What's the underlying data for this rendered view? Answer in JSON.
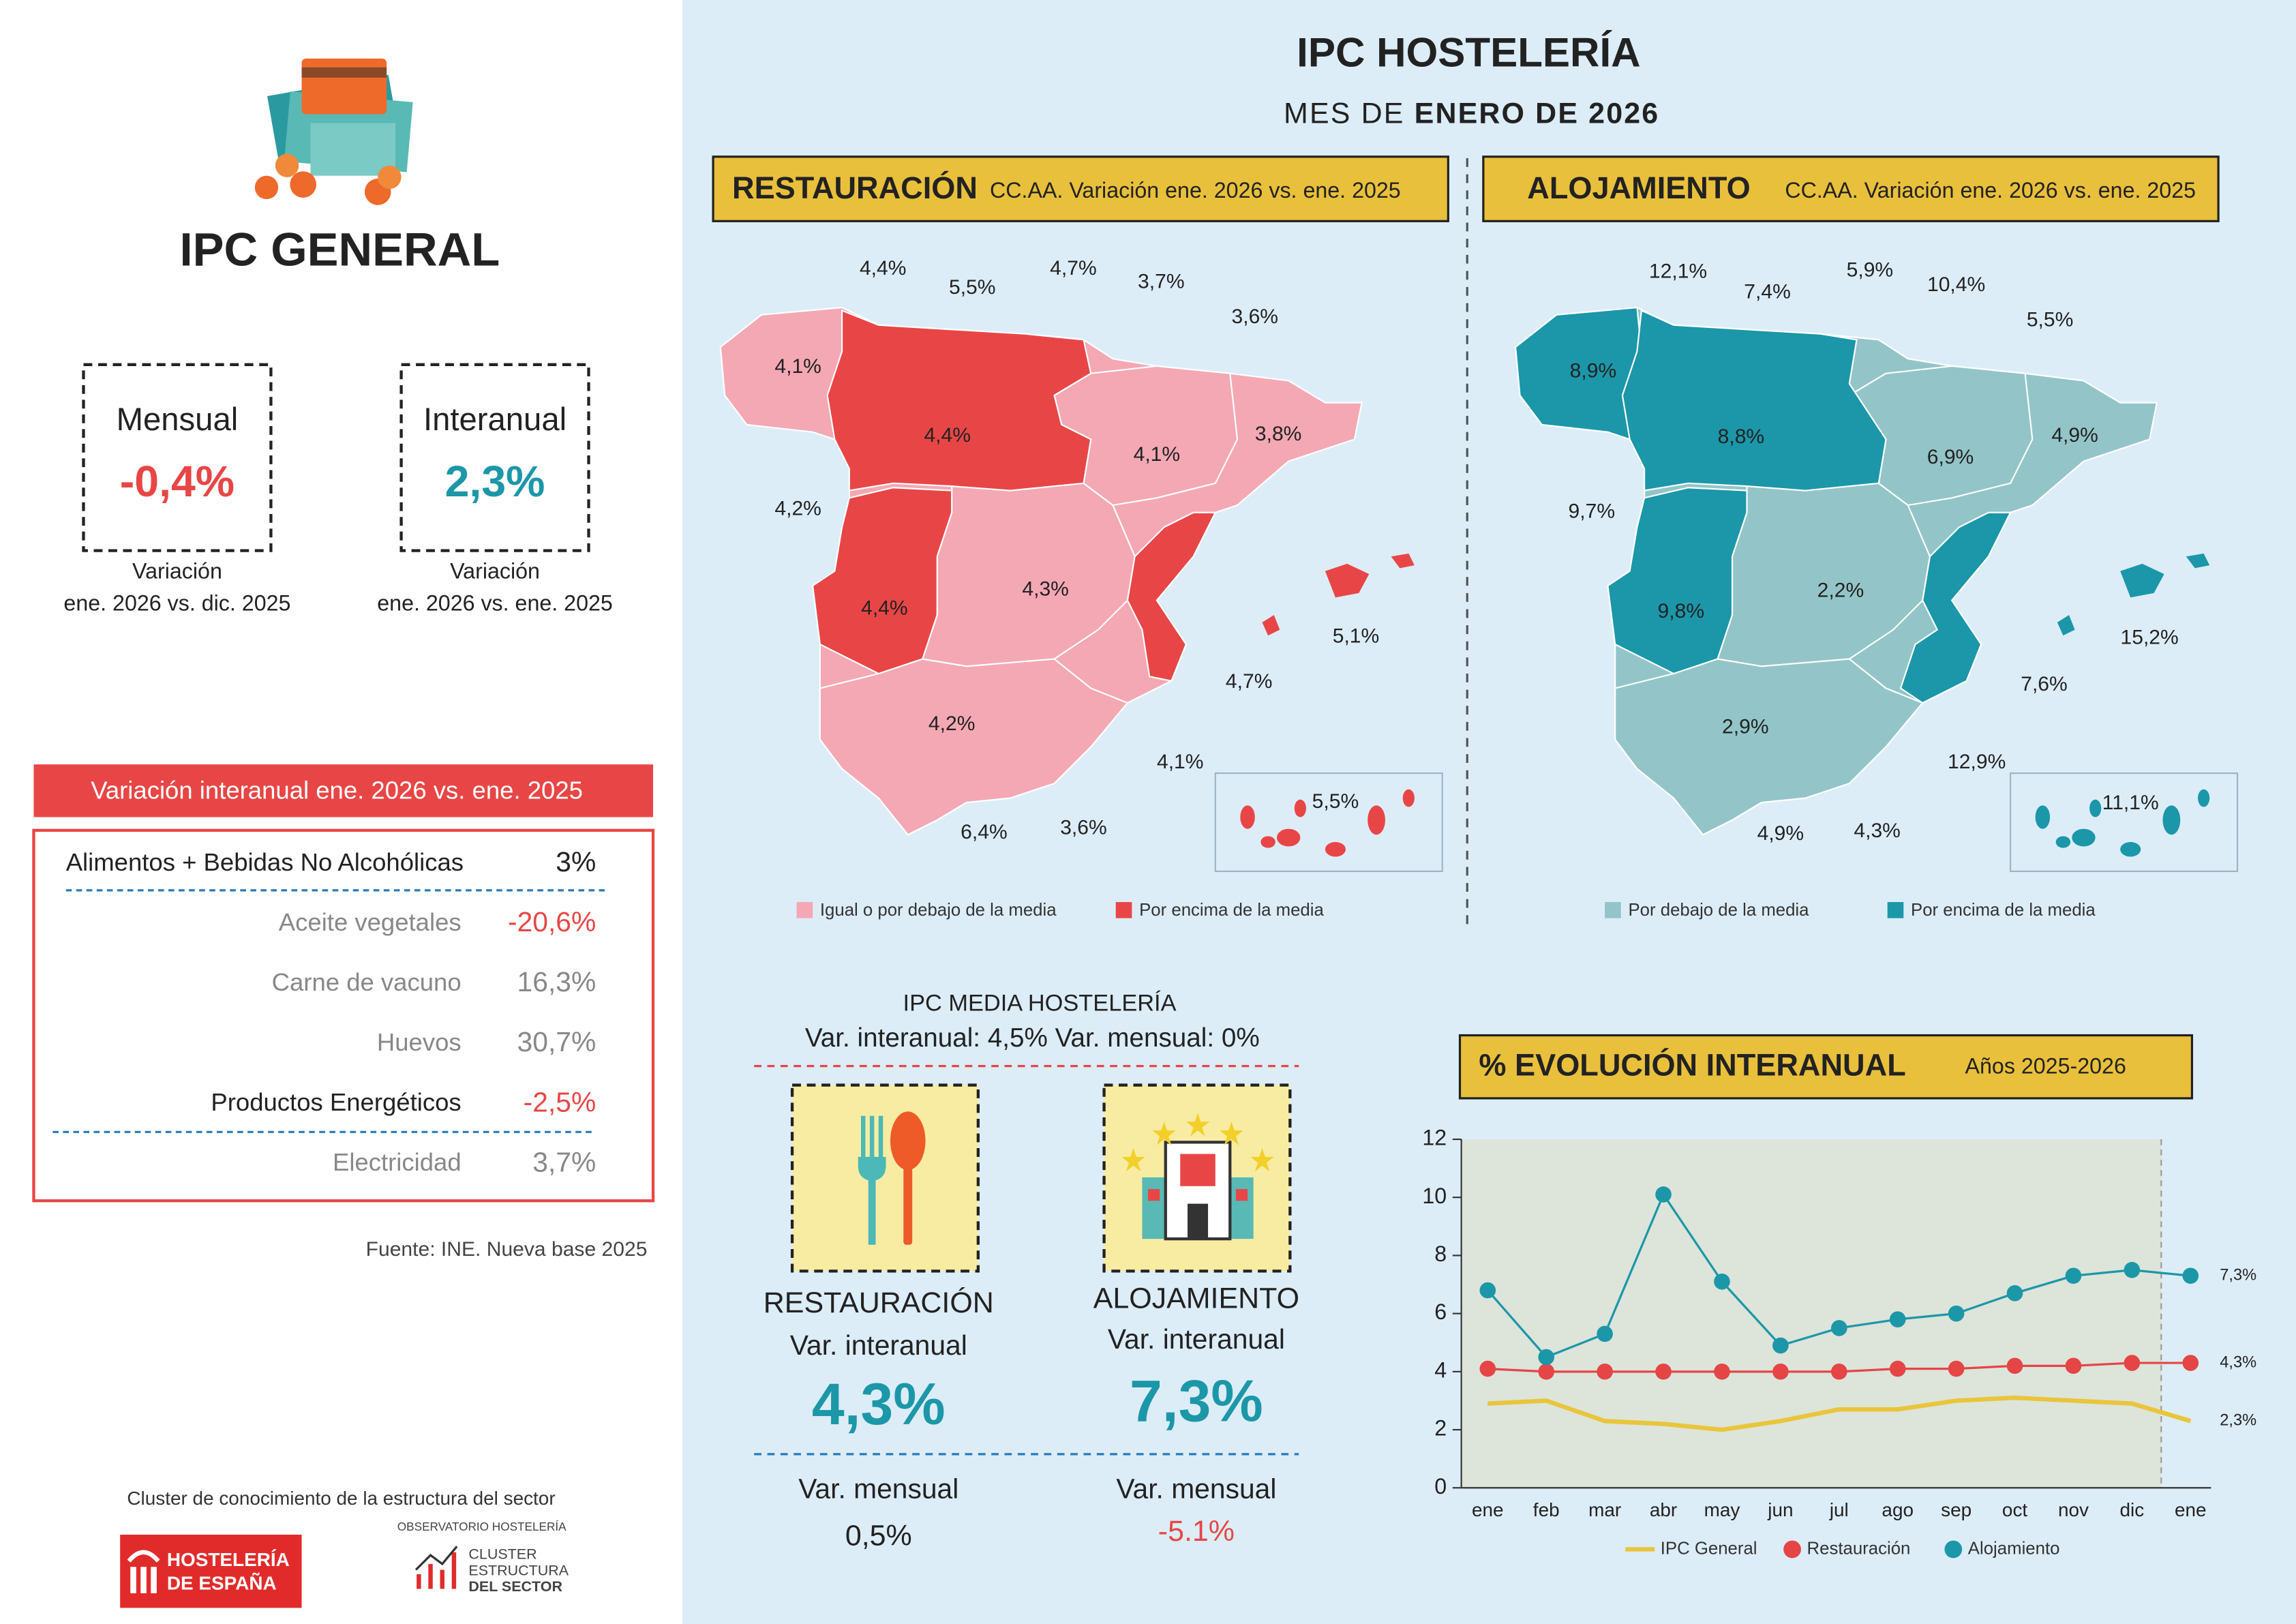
{
  "left": {
    "title": "IPC GENERAL",
    "mensual": {
      "label": "Mensual",
      "value": "-0,4%",
      "note1": "Variación",
      "note2": "ene. 2026 vs. dic. 2025"
    },
    "interanual": {
      "label": "Interanual",
      "value": "2,3%",
      "note1": "Variación",
      "note2": "ene. 2026 vs. ene. 2025"
    },
    "table": {
      "header": "Variación interanual ene. 2026 vs. ene. 2025",
      "rows": [
        [
          "Alimentos + Bebidas No Alcohólicas",
          "3%"
        ],
        [
          "Aceite vegetales",
          "-20,6%"
        ],
        [
          "Carne de vacuno",
          "16,3%"
        ],
        [
          "Huevos",
          "30,7%"
        ],
        [
          "Productos Energéticos",
          "-2,5%"
        ],
        [
          "Electricidad",
          "3,7%"
        ]
      ]
    },
    "source": "Fuente: INE. Nueva base 2025",
    "footer": {
      "cluster": "Cluster de conocimiento de la estructura del sector",
      "logo1": [
        "HOSTELERÍA",
        "DE ESPAÑA"
      ],
      "logo2_small": "OBSERVATORIO HOSTELERÍA",
      "logo2": [
        "CLUSTER",
        "ESTRUCTURA",
        "DEL SECTOR"
      ]
    }
  },
  "header": {
    "title": "IPC HOSTELERÍA",
    "subtitle_prefix": "MES DE",
    "subtitle_bold": "ENERO DE 2026"
  },
  "maps": [
    {
      "title": "RESTAURACIÓN",
      "subtitle": "CC.AA. Variación ene. 2026 vs. ene. 2025",
      "labels": [
        "4,4%",
        "5,5%",
        "4,7%",
        "3,7%",
        "3,6%",
        "4,1%",
        "4,4%",
        "4,1%",
        "3,8%",
        "4,2%",
        "4,3%",
        "4,4%",
        "5,1%",
        "4,7%",
        "4,2%",
        "4,1%",
        "5,5%",
        "6,4%",
        "3,6%"
      ],
      "legend": [
        "Igual o por debajo de la media",
        "Por encima de la media"
      ]
    },
    {
      "title": "ALOJAMIENTO",
      "subtitle": "CC.AA. Variación ene. 2026 vs. ene. 2025",
      "labels": [
        "12,1%",
        "7,4%",
        "5,9%",
        "10,4%",
        "5,5%",
        "8,9%",
        "8,8%",
        "6,9%",
        "4,9%",
        "9,7%",
        "2,2%",
        "9,8%",
        "15,2%",
        "7,6%",
        "2,9%",
        "12,9%",
        "11,1%",
        "4,9%",
        "4,3%"
      ],
      "legend": [
        "Por debajo de la media",
        "Por encima de la media"
      ]
    }
  ],
  "media": {
    "title": "IPC MEDIA HOSTELERÍA",
    "line": "Var. interanual: 4,5%  Var. mensual: 0%",
    "restauracion": {
      "name": "RESTAURACIÓN",
      "label1": "Var. interanual",
      "value1": "4,3%",
      "label2": "Var. mensual",
      "value2": "0,5%"
    },
    "alojamiento": {
      "name": "ALOJAMIENTO",
      "label1": "Var. interanual",
      "value1": "7,3%",
      "label2": "Var. mensual",
      "value2": "-5.1%"
    }
  },
  "chart_data": {
    "type": "line",
    "title": "% EVOLUCIÓN INTERANUAL",
    "subtitle": "Años 2025-2026",
    "categories": [
      "ene",
      "feb",
      "mar",
      "abr",
      "may",
      "jun",
      "jul",
      "ago",
      "sep",
      "oct",
      "nov",
      "dic",
      "ene"
    ],
    "ylim": [
      0,
      12
    ],
    "yticks": [
      0,
      2,
      4,
      6,
      8,
      10,
      12
    ],
    "series": [
      {
        "name": "IPC General",
        "color": "#e9c53c",
        "markers": false,
        "values": [
          2.9,
          3.0,
          2.3,
          2.2,
          2.0,
          2.3,
          2.7,
          2.7,
          3.0,
          3.1,
          3.0,
          2.9,
          2.3
        ],
        "value_labels": [
          null,
          null,
          null,
          null,
          null,
          null,
          null,
          null,
          null,
          null,
          null,
          null,
          "2,3%"
        ]
      },
      {
        "name": "Restauración",
        "color": "#e54545",
        "markers": true,
        "values": [
          4.1,
          4.0,
          4.0,
          4.0,
          4.0,
          4.0,
          4.0,
          4.1,
          4.1,
          4.2,
          4.2,
          4.3,
          4.3
        ],
        "value_labels": [
          null,
          null,
          null,
          null,
          null,
          null,
          null,
          null,
          null,
          null,
          null,
          null,
          "4,3%"
        ]
      },
      {
        "name": "Alojamiento",
        "color": "#1c97a8",
        "markers": true,
        "values": [
          6.8,
          4.5,
          5.3,
          10.1,
          7.1,
          4.9,
          5.5,
          5.8,
          6.0,
          6.7,
          7.3,
          7.5,
          7.3
        ],
        "value_labels": [
          null,
          null,
          null,
          null,
          null,
          null,
          null,
          null,
          null,
          null,
          null,
          null,
          "7,3%"
        ]
      }
    ]
  }
}
